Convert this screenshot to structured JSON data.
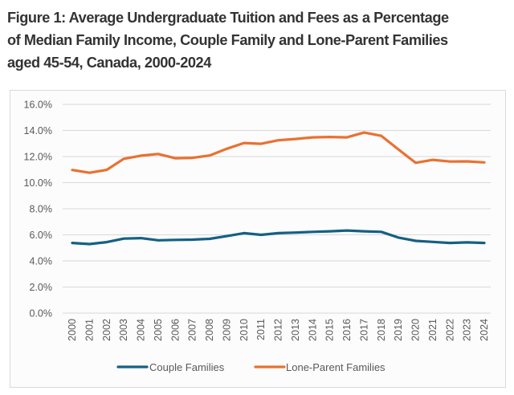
{
  "figure": {
    "title": "Figure 1: Average Undergraduate Tuition and Fees as a Percentage of Median Family Income, Couple Family and Lone-Parent Families aged 45-54, Canada, 2000-2024",
    "title_lines": [
      "Figure 1: Average Undergraduate Tuition and Fees as a Percentage",
      "of Median Family Income, Couple Family and Lone-Parent Families",
      "aged 45-54, Canada, 2000-2024"
    ]
  },
  "chart_data": {
    "type": "line",
    "title": "Figure 1: Average Undergraduate Tuition and Fees as a Percentage of Median Family Income, Couple Family and Lone-Parent Families aged 45-54, Canada, 2000-2024",
    "xlabel": "",
    "ylabel": "",
    "categories": [
      "2000",
      "2001",
      "2002",
      "2003",
      "2004",
      "2005",
      "2006",
      "2007",
      "2008",
      "2009",
      "2010",
      "2011",
      "2012",
      "2013",
      "2014",
      "2015",
      "2016",
      "2017",
      "2018",
      "2019",
      "2020",
      "2021",
      "2022",
      "2023",
      "2024"
    ],
    "ylim": [
      0,
      16
    ],
    "y_ticks": [
      0,
      2,
      4,
      6,
      8,
      10,
      12,
      14,
      16
    ],
    "y_tick_labels": [
      "0.0%",
      "2.0%",
      "4.0%",
      "6.0%",
      "8.0%",
      "10.0%",
      "12.0%",
      "14.0%",
      "16.0%"
    ],
    "grid": "horizontal",
    "legend_position": "bottom",
    "series": [
      {
        "name": "Couple Families",
        "color": "#156082",
        "values": [
          5.38,
          5.29,
          5.44,
          5.71,
          5.75,
          5.58,
          5.61,
          5.63,
          5.69,
          5.9,
          6.13,
          6.0,
          6.13,
          6.17,
          6.23,
          6.27,
          6.33,
          6.27,
          6.23,
          5.79,
          5.54,
          5.46,
          5.38,
          5.42,
          5.38
        ]
      },
      {
        "name": "Lone-Parent Families",
        "color": "#E97132",
        "values": [
          10.97,
          10.76,
          10.98,
          11.83,
          12.07,
          12.2,
          11.87,
          11.9,
          12.08,
          12.6,
          13.04,
          12.98,
          13.25,
          13.35,
          13.47,
          13.5,
          13.47,
          13.84,
          13.59,
          12.55,
          11.52,
          11.75,
          11.62,
          11.63,
          11.55
        ]
      }
    ]
  }
}
